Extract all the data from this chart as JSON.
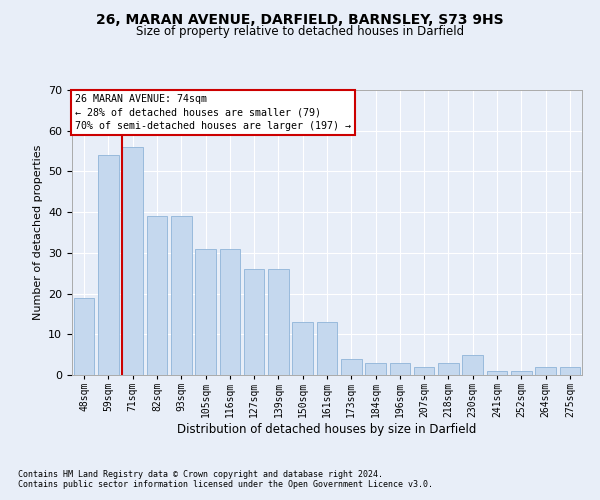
{
  "title1": "26, MARAN AVENUE, DARFIELD, BARNSLEY, S73 9HS",
  "title2": "Size of property relative to detached houses in Darfield",
  "xlabel": "Distribution of detached houses by size in Darfield",
  "ylabel": "Number of detached properties",
  "categories": [
    "48sqm",
    "59sqm",
    "71sqm",
    "82sqm",
    "93sqm",
    "105sqm",
    "116sqm",
    "127sqm",
    "139sqm",
    "150sqm",
    "161sqm",
    "173sqm",
    "184sqm",
    "196sqm",
    "207sqm",
    "218sqm",
    "230sqm",
    "241sqm",
    "252sqm",
    "264sqm",
    "275sqm"
  ],
  "values": [
    19,
    54,
    56,
    39,
    39,
    31,
    31,
    26,
    26,
    13,
    13,
    4,
    3,
    3,
    2,
    3,
    5,
    1,
    1,
    2,
    2
  ],
  "bar_color": "#c5d8ee",
  "bar_edgecolor": "#8fb4d8",
  "vline_color": "#cc0000",
  "vline_index": 2,
  "ylim": [
    0,
    70
  ],
  "yticks": [
    0,
    10,
    20,
    30,
    40,
    50,
    60,
    70
  ],
  "annotation_text": "26 MARAN AVENUE: 74sqm\n← 28% of detached houses are smaller (79)\n70% of semi-detached houses are larger (197) →",
  "annotation_box_color": "white",
  "annotation_box_edgecolor": "#cc0000",
  "footer1": "Contains HM Land Registry data © Crown copyright and database right 2024.",
  "footer2": "Contains public sector information licensed under the Open Government Licence v3.0.",
  "bg_color": "#e8eef8",
  "plot_bg_color": "#e8eef8"
}
